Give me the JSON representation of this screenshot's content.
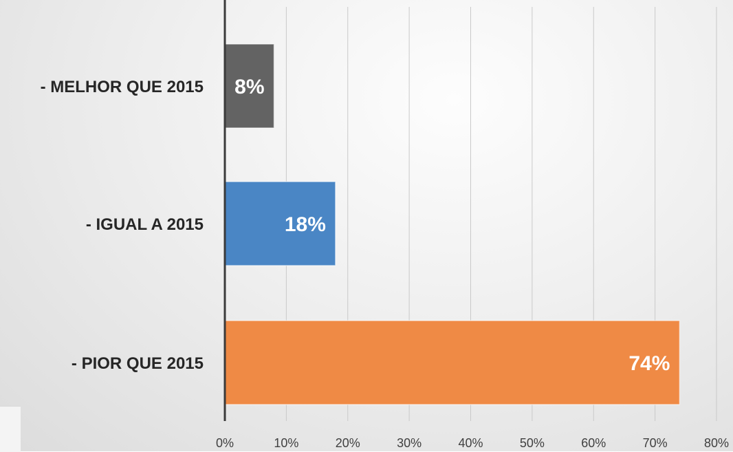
{
  "chart_data": {
    "type": "bar",
    "orientation": "horizontal",
    "categories": [
      "- MELHOR QUE 2015",
      "- IGUAL A 2015",
      "- PIOR QUE 2015"
    ],
    "values": [
      8,
      18,
      74
    ],
    "data_labels": [
      "8%",
      "18%",
      "74%"
    ],
    "colors": [
      "#636363",
      "#4a86c5",
      "#ef8a45"
    ],
    "x_ticks": [
      "0%",
      "10%",
      "20%",
      "30%",
      "40%",
      "50%",
      "60%",
      "70%",
      "80%"
    ],
    "xlim": [
      0,
      80
    ],
    "grid": true,
    "legend": "none"
  }
}
